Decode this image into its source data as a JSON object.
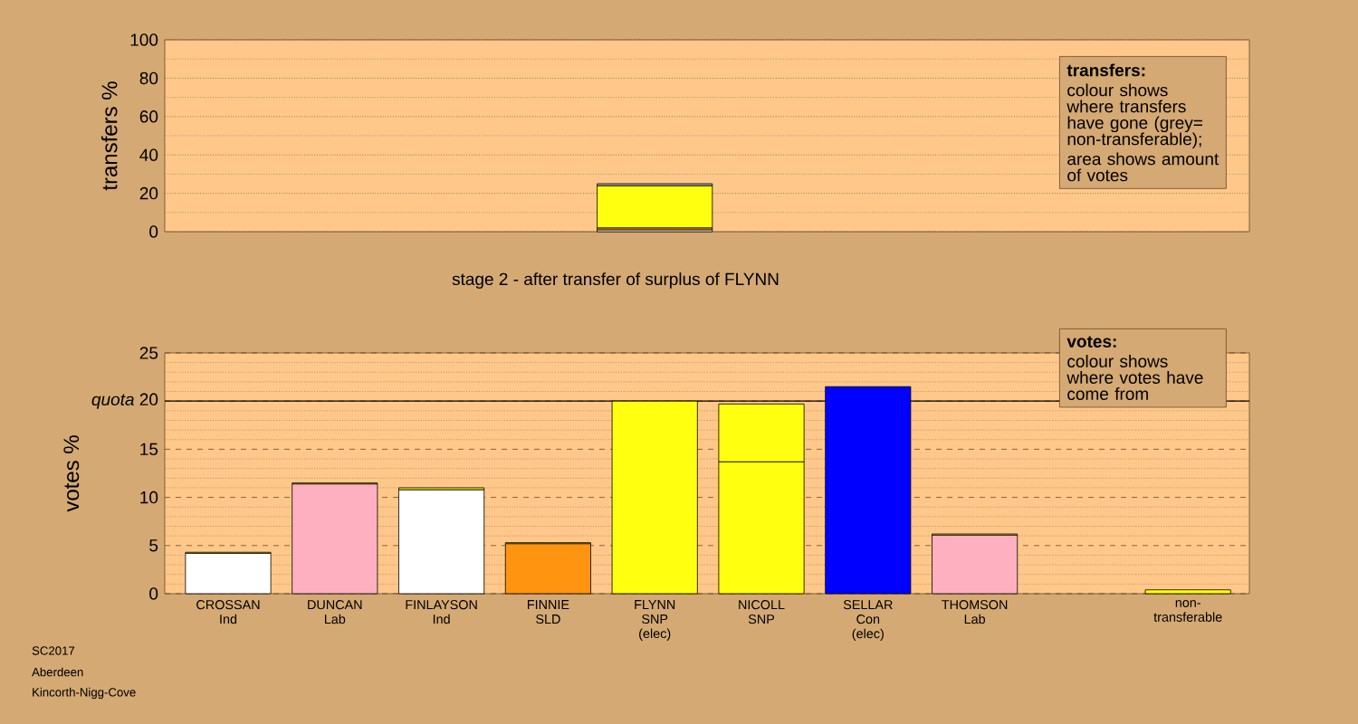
{
  "chart_data": [
    {
      "type": "bar",
      "stacked": true,
      "tick_labels": "y",
      "ylabel": "transfers %",
      "ylim": [
        0,
        100
      ],
      "yticks": [
        0,
        {
          "value": 10,
          "label": null
        },
        20,
        {
          "value": 30,
          "label": null
        },
        40,
        {
          "value": 50,
          "label": null
        },
        60,
        {
          "value": 70,
          "label": null
        },
        80,
        {
          "value": 90,
          "label": null
        },
        100
      ],
      "grid": "y",
      "categories": [
        null,
        null,
        null,
        null,
        null,
        null,
        null,
        null,
        null,
        null
      ],
      "series": [
        {
          "color": "#ffffff",
          "values": [
            null,
            null,
            null,
            null,
            1,
            null,
            null,
            null,
            null,
            null
          ]
        },
        {
          "color": "#ff9410",
          "values": [
            null,
            null,
            null,
            null,
            1,
            null,
            null,
            null,
            null,
            null
          ]
        },
        {
          "color": "#ffff10",
          "values": [
            null,
            null,
            null,
            null,
            22,
            null,
            null,
            null,
            null,
            null
          ]
        },
        {
          "color": "#b0b0b0",
          "values": [
            null,
            null,
            null,
            null,
            1,
            null,
            null,
            null,
            null,
            null
          ]
        }
      ],
      "annotations": [
        "transfers:",
        "colour shows where transfers have gone (grey= non-transferable);",
        "area shows amount of votes"
      ]
    },
    {
      "type": "bar",
      "stacked": true,
      "title": "stage 2 - after transfer of surplus of FLYNN",
      "ylabel": "votes %",
      "ylim": [
        0,
        25
      ],
      "yticks": [
        0,
        {
          "value": 1,
          "label": null
        },
        {
          "value": 2,
          "label": null
        },
        {
          "value": 3,
          "label": null
        },
        {
          "value": 4,
          "label": null
        },
        5,
        {
          "value": 6,
          "label": null
        },
        {
          "value": 7,
          "label": null
        },
        {
          "value": 8,
          "label": null
        },
        {
          "value": 9,
          "label": null
        },
        10,
        {
          "value": 11,
          "label": null
        },
        {
          "value": 12,
          "label": null
        },
        {
          "value": 13,
          "label": null
        },
        {
          "value": 14,
          "label": null
        },
        15,
        {
          "value": 16,
          "label": null
        },
        {
          "value": 17,
          "label": null
        },
        {
          "value": 18,
          "label": null
        },
        {
          "value": 19,
          "label": null
        },
        {
          "value": 20,
          "label": "*quota* 20"
        },
        {
          "value": 21,
          "label": null
        },
        {
          "value": 22,
          "label": null
        },
        {
          "value": 23,
          "label": null
        },
        {
          "value": 24,
          "label": null
        },
        25
      ],
      "grid": "y",
      "categories": [
        "CROSSAN\nInd",
        "DUNCAN\nLab",
        "FINLAYSON\nInd",
        "FINNIE\nSLD",
        "FLYNN\nSNP\n(elec)",
        "NICOLL\nSNP",
        "SELLAR\nCon\n(elec)",
        "THOMSON\nLab",
        null,
        "non-transferable"
      ],
      "series": [
        {
          "colors": [
            "#ffffff",
            "#ffb0c0",
            "#ffffff",
            "#ff9410",
            "#ffff10",
            "#ffff10",
            "#0000ff",
            "#ffb0c0",
            null,
            null
          ],
          "values": [
            4.2,
            11.4,
            10.8,
            5.2,
            20.0,
            13.7,
            21.5,
            6.1,
            null,
            null
          ]
        },
        {
          "color": "#ffff10",
          "values": [
            0.1,
            0.1,
            0.2,
            0.1,
            null,
            6.0,
            null,
            0.1,
            null,
            0.4
          ]
        }
      ],
      "ref_lines": [
        {
          "axis": "y",
          "value": 20,
          "color": "#000000"
        }
      ],
      "annotations": [
        "votes:",
        "colour shows where votes have come from",
        "SC2017",
        "Aberdeen",
        "Kincorth-Nigg-Cove"
      ]
    }
  ]
}
